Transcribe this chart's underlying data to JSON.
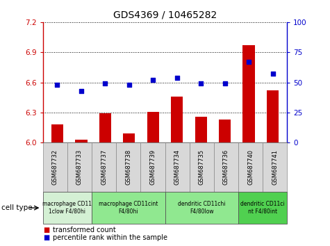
{
  "title": "GDS4369 / 10465282",
  "samples": [
    "GSM687732",
    "GSM687733",
    "GSM687737",
    "GSM687738",
    "GSM687739",
    "GSM687734",
    "GSM687735",
    "GSM687736",
    "GSM687740",
    "GSM687741"
  ],
  "transformed_count": [
    6.18,
    6.03,
    6.29,
    6.09,
    6.31,
    6.46,
    6.26,
    6.23,
    6.97,
    6.52
  ],
  "percentile_rank": [
    48,
    43,
    49,
    48,
    52,
    54,
    49,
    49,
    67,
    57
  ],
  "ylim_left": [
    6.0,
    7.2
  ],
  "ylim_right": [
    0,
    100
  ],
  "yticks_left": [
    6.0,
    6.3,
    6.6,
    6.9,
    7.2
  ],
  "yticks_right": [
    0,
    25,
    50,
    75,
    100
  ],
  "bar_color": "#cc0000",
  "dot_color": "#0000cc",
  "bg_color": "#ffffff",
  "cell_type_groups": [
    {
      "label": "macrophage CD11\n1clow F4/80hi",
      "start": 0,
      "end": 2,
      "color": "#d4f0d4"
    },
    {
      "label": "macrophage CD11cint\nF4/80hi",
      "start": 2,
      "end": 5,
      "color": "#90e890"
    },
    {
      "label": "dendritic CD11chi\nF4/80low",
      "start": 5,
      "end": 8,
      "color": "#90e890"
    },
    {
      "label": "dendritic CD11ci\nnt F4/80int",
      "start": 8,
      "end": 10,
      "color": "#50d050"
    }
  ],
  "left_axis_color": "#cc0000",
  "right_axis_color": "#0000cc"
}
